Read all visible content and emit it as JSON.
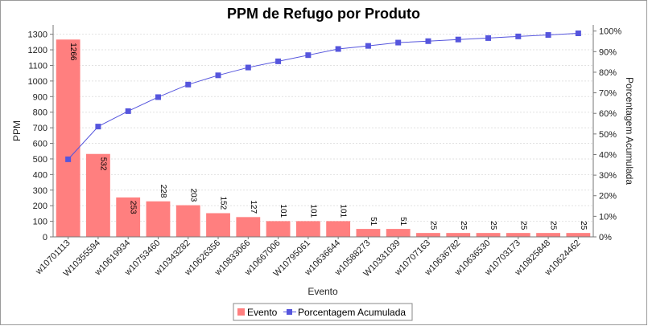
{
  "chart_data": {
    "type": "bar",
    "title": "PPM de Refugo por Produto",
    "xlabel": "Evento",
    "ylabel": "PPM",
    "y2label": "Porcentagem Acumulada",
    "ylim": [
      0,
      1360
    ],
    "y2lim": [
      0,
      1.03
    ],
    "y_ticks": [
      0,
      100,
      200,
      300,
      400,
      500,
      600,
      700,
      800,
      900,
      1000,
      1100,
      1200,
      1300
    ],
    "y2_ticks": [
      "0%",
      "10%",
      "20%",
      "30%",
      "40%",
      "50%",
      "60%",
      "70%",
      "80%",
      "90%",
      "100%"
    ],
    "grid": true,
    "legend_position": "bottom",
    "categories": [
      "w10701113",
      "W10355594",
      "w10619934",
      "w10753460",
      "w10343282",
      "w10626356",
      "w10833066",
      "w10667006",
      "W10795061",
      "w10636644",
      "w10588273",
      "W10331039",
      "w10707163",
      "w10636782",
      "w10636530",
      "w10703173",
      "w10825848",
      "w10624462"
    ],
    "series": [
      {
        "name": "Evento",
        "kind": "bar",
        "color": "#ff7f7f",
        "values": [
          1266,
          532,
          253,
          228,
          203,
          152,
          127,
          101,
          101,
          101,
          51,
          51,
          25,
          25,
          25,
          25,
          25,
          25
        ],
        "labels": [
          "1266",
          "532",
          "253",
          "228",
          "203",
          "152",
          "127",
          "101",
          "101",
          "101",
          "51",
          "51",
          "25",
          "25",
          "25",
          "25",
          "25",
          "25"
        ]
      },
      {
        "name": "Porcentagem Acumulada",
        "kind": "line",
        "color": "#5555dd",
        "values": [
          0.377,
          0.536,
          0.611,
          0.679,
          0.74,
          0.785,
          0.823,
          0.853,
          0.883,
          0.913,
          0.928,
          0.944,
          0.951,
          0.959,
          0.966,
          0.974,
          0.981,
          0.989
        ]
      }
    ]
  }
}
